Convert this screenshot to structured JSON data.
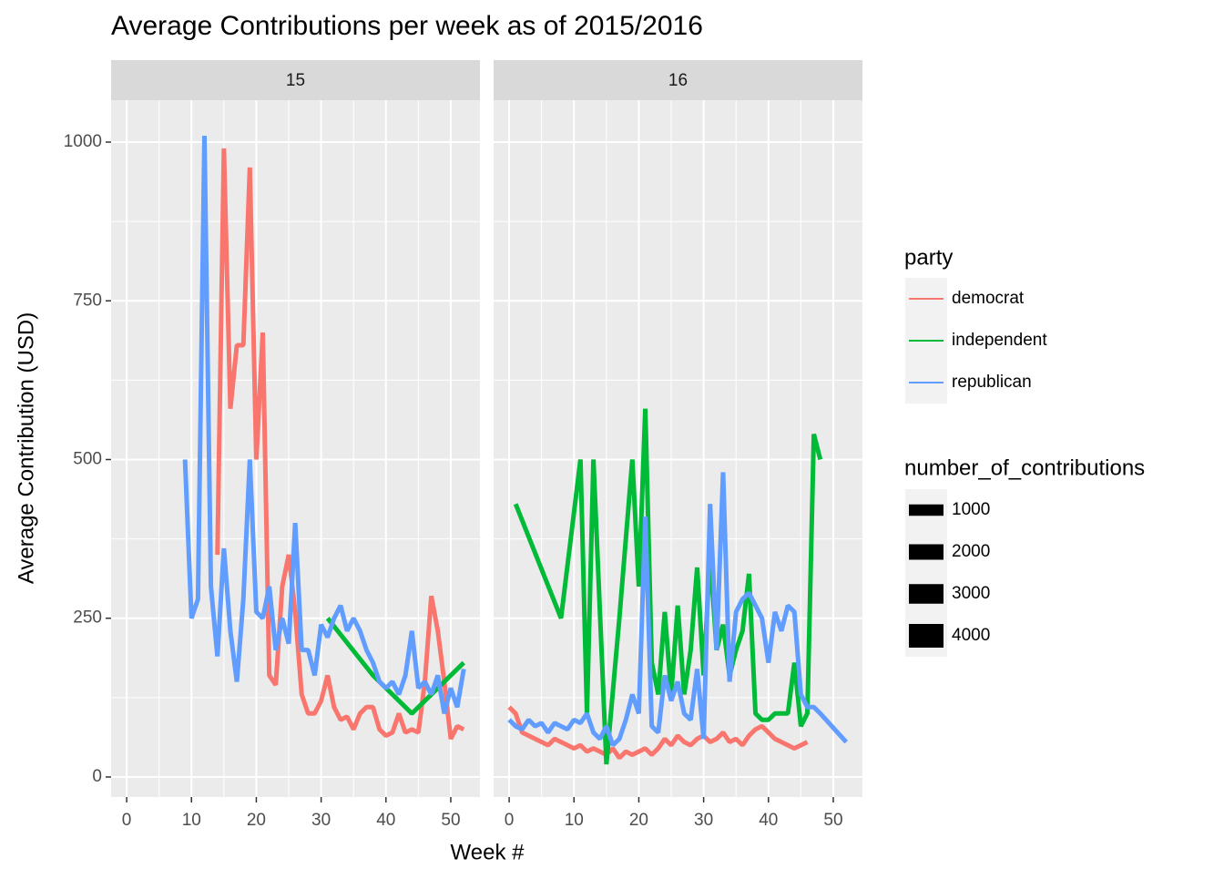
{
  "chart_data": {
    "type": "line",
    "title": "Average Contributions per week as of 2015/2016",
    "x_label": "Week #",
    "y_label": "Average Contribution (USD)",
    "xlim": [
      -2.4,
      54.5
    ],
    "ylim": [
      -31.6,
      1066
    ],
    "xticks": [
      0,
      10,
      20,
      30,
      40,
      50
    ],
    "yticks": [
      0,
      250,
      500,
      750,
      1000
    ],
    "grid": true,
    "legend_title": "party",
    "size_legend": {
      "title": "number_of_contributions",
      "values": [
        1000,
        2000,
        3000,
        4000
      ]
    },
    "panels": [
      {
        "label": "15",
        "series": [
          {
            "name": "democrat",
            "color": "#F8766D",
            "x": [
              14,
              15,
              16,
              17,
              18,
              19,
              20,
              21,
              22,
              23,
              24,
              25,
              26,
              27,
              28,
              29,
              30,
              31,
              32,
              33,
              34,
              35,
              36,
              37,
              38,
              39,
              40,
              41,
              42,
              43,
              44,
              45,
              46,
              47,
              48,
              49,
              50,
              51,
              52
            ],
            "values": [
              350,
              990,
              580,
              680,
              680,
              960,
              500,
              700,
              160,
              145,
              300,
              350,
              260,
              130,
              100,
              100,
              120,
              160,
              110,
              90,
              95,
              75,
              100,
              110,
              110,
              75,
              65,
              70,
              100,
              70,
              75,
              70,
              150,
              285,
              230,
              150,
              60,
              80,
              75
            ]
          },
          {
            "name": "independent",
            "color": "#00BA38",
            "x": [
              31,
              38,
              44,
              52
            ],
            "values": [
              250,
              160,
              100,
              180
            ]
          },
          {
            "name": "republican",
            "color": "#619CFF",
            "x": [
              9,
              10,
              11,
              12,
              13,
              14,
              15,
              16,
              17,
              18,
              19,
              20,
              21,
              22,
              23,
              24,
              25,
              26,
              27,
              28,
              29,
              30,
              31,
              32,
              33,
              34,
              35,
              36,
              37,
              38,
              39,
              40,
              41,
              42,
              43,
              44,
              45,
              46,
              47,
              48,
              49,
              50,
              51,
              52
            ],
            "values": [
              500,
              250,
              280,
              1010,
              300,
              190,
              360,
              230,
              150,
              280,
              500,
              260,
              250,
              300,
              200,
              250,
              210,
              400,
              200,
              200,
              160,
              240,
              220,
              250,
              270,
              230,
              250,
              230,
              200,
              180,
              150,
              140,
              150,
              130,
              160,
              230,
              140,
              150,
              130,
              160,
              100,
              140,
              110,
              170
            ]
          }
        ]
      },
      {
        "label": "16",
        "series": [
          {
            "name": "democrat",
            "color": "#F8766D",
            "x": [
              0,
              1,
              2,
              3,
              4,
              5,
              6,
              7,
              8,
              9,
              10,
              11,
              12,
              13,
              14,
              15,
              16,
              17,
              18,
              19,
              20,
              21,
              22,
              23,
              24,
              25,
              26,
              27,
              28,
              29,
              30,
              31,
              32,
              33,
              34,
              35,
              36,
              37,
              38,
              39,
              40,
              41,
              42,
              43,
              44,
              45,
              46
            ],
            "values": [
              110,
              100,
              70,
              65,
              60,
              55,
              50,
              60,
              55,
              50,
              45,
              50,
              40,
              45,
              40,
              35,
              45,
              30,
              40,
              35,
              40,
              45,
              35,
              45,
              60,
              50,
              65,
              55,
              50,
              60,
              65,
              55,
              60,
              70,
              55,
              60,
              50,
              65,
              75,
              80,
              70,
              60,
              55,
              50,
              45,
              50,
              55
            ]
          },
          {
            "name": "independent",
            "color": "#00BA38",
            "x": [
              1,
              8,
              11,
              12,
              13,
              15,
              17,
              19,
              20,
              21,
              22,
              23,
              24,
              25,
              26,
              27,
              28,
              29,
              30,
              31,
              32,
              33,
              34,
              35,
              36,
              37,
              38,
              39,
              40,
              41,
              42,
              43,
              44,
              45,
              46,
              47,
              48
            ],
            "values": [
              430,
              250,
              500,
              100,
              500,
              20,
              250,
              500,
              300,
              580,
              180,
              130,
              260,
              130,
              270,
              130,
              200,
              330,
              160,
              350,
              200,
              240,
              160,
              200,
              230,
              320,
              100,
              90,
              90,
              100,
              100,
              100,
              180,
              80,
              100,
              540,
              500
            ]
          },
          {
            "name": "republican",
            "color": "#619CFF",
            "x": [
              0,
              1,
              2,
              3,
              4,
              5,
              6,
              7,
              8,
              9,
              10,
              11,
              12,
              13,
              14,
              15,
              16,
              17,
              18,
              19,
              20,
              21,
              22,
              23,
              24,
              25,
              26,
              27,
              28,
              29,
              30,
              31,
              32,
              33,
              34,
              35,
              36,
              37,
              38,
              39,
              40,
              41,
              42,
              43,
              44,
              45,
              46,
              47,
              48,
              52
            ],
            "values": [
              90,
              80,
              75,
              90,
              80,
              85,
              70,
              85,
              80,
              75,
              90,
              85,
              100,
              70,
              60,
              80,
              50,
              60,
              90,
              130,
              100,
              410,
              80,
              70,
              160,
              120,
              150,
              100,
              90,
              170,
              60,
              430,
              200,
              480,
              150,
              260,
              280,
              290,
              270,
              250,
              180,
              260,
              230,
              270,
              260,
              130,
              110,
              110,
              100,
              55
            ]
          }
        ]
      }
    ]
  }
}
